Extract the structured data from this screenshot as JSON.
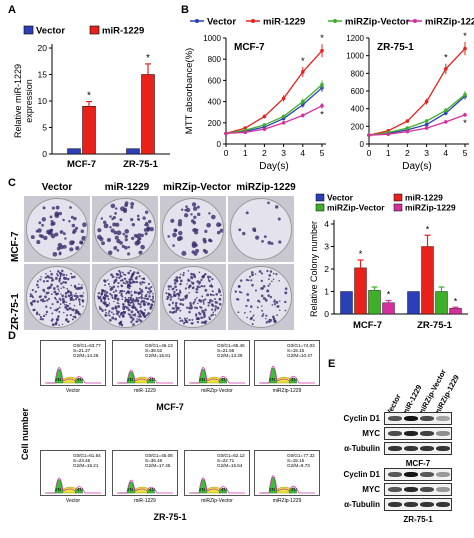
{
  "panels": {
    "A": "A",
    "B": "B",
    "C": "C",
    "D": "D",
    "E": "E"
  },
  "chart_data": [
    {
      "type": "bar",
      "panel": "A",
      "categories": [
        "MCF-7",
        "ZR-75-1"
      ],
      "series": [
        {
          "name": "Vector",
          "values": [
            1,
            1
          ],
          "color": "#2b3fb8"
        },
        {
          "name": "miR-1229",
          "values": [
            9,
            15
          ],
          "errors": [
            0.9,
            2.0
          ],
          "color": "#e8211a"
        }
      ],
      "ylabel": "Relative miR-1229\nexpression",
      "ylim": [
        0,
        20
      ],
      "yticks": [
        0,
        5,
        10,
        15,
        20
      ],
      "annotations": [
        "*",
        "*"
      ],
      "legend": "top"
    },
    {
      "type": "line",
      "panel": "B",
      "title": "MCF-7",
      "x": [
        0,
        1,
        2,
        3,
        4,
        5
      ],
      "xlabel": "Day(s)",
      "ylabel": "MTT absorbance(%)",
      "ylim": [
        0,
        1000
      ],
      "yticks": [
        0,
        200,
        400,
        600,
        800,
        1000
      ],
      "series": [
        {
          "name": "Vector",
          "values": [
            100,
            120,
            160,
            240,
            370,
            530
          ],
          "color": "#2b3fb8"
        },
        {
          "name": "miR-1229",
          "values": [
            100,
            150,
            260,
            430,
            680,
            880
          ],
          "color": "#e8211a"
        },
        {
          "name": "miRZip-Vector",
          "values": [
            100,
            130,
            180,
            260,
            400,
            560
          ],
          "color": "#3faf2a"
        },
        {
          "name": "miRZip-1229",
          "values": [
            100,
            110,
            140,
            200,
            270,
            360
          ],
          "color": "#d4309c"
        }
      ],
      "annotations": [
        "*",
        "*",
        "*"
      ]
    },
    {
      "type": "line",
      "panel": "B",
      "title": "ZR-75-1",
      "x": [
        0,
        1,
        2,
        3,
        4,
        5
      ],
      "xlabel": "Day(s)",
      "ylim": [
        0,
        1200
      ],
      "yticks": [
        0,
        200,
        400,
        600,
        800,
        1000,
        1200
      ],
      "series": [
        {
          "name": "Vector",
          "values": [
            100,
            120,
            160,
            220,
            350,
            540
          ],
          "color": "#2b3fb8"
        },
        {
          "name": "miR-1229",
          "values": [
            100,
            150,
            260,
            480,
            850,
            1080
          ],
          "color": "#e8211a"
        },
        {
          "name": "miRZip-Vector",
          "values": [
            100,
            130,
            180,
            260,
            380,
            560
          ],
          "color": "#3faf2a"
        },
        {
          "name": "miRZip-1229",
          "values": [
            100,
            110,
            140,
            180,
            250,
            330
          ],
          "color": "#d4309c"
        }
      ],
      "annotations": [
        "*",
        "*",
        "*"
      ]
    },
    {
      "type": "bar",
      "panel": "C",
      "categories": [
        "MCF-7",
        "ZR-75-1"
      ],
      "series": [
        {
          "name": "Vector",
          "values": [
            1,
            1
          ],
          "color": "#2b3fb8"
        },
        {
          "name": "miR-1229",
          "values": [
            2.05,
            3.0
          ],
          "errors": [
            0.35,
            0.5
          ],
          "color": "#e8211a"
        },
        {
          "name": "miRZip-Vector",
          "values": [
            1.05,
            1.0
          ],
          "errors": [
            0.15,
            0.2
          ],
          "color": "#3faf2a"
        },
        {
          "name": "miRZip-1229",
          "values": [
            0.5,
            0.25
          ],
          "errors": [
            0.1,
            0.05
          ],
          "color": "#d4309c"
        }
      ],
      "ylabel": "Relative Colony number",
      "ylim": [
        0,
        4
      ],
      "yticks": [
        0,
        1,
        2,
        3,
        4
      ],
      "annotations": [
        "*",
        "*",
        "*",
        "*"
      ],
      "legend": "top"
    }
  ],
  "colony": {
    "columns": [
      "Vector",
      "miR-1229",
      "miRZip-Vector",
      "miRZip-1229"
    ],
    "rows": [
      "MCF-7",
      "ZR-75-1"
    ]
  },
  "flow": {
    "ylabel": "Cell number",
    "peak_labels": [
      "2N",
      "4N"
    ],
    "groups": [
      {
        "cell": "MCF-7",
        "items": [
          {
            "name": "Vector",
            "stats": [
              "G0/G1=63.77",
              "S=21.27",
              "G2/M=14.28"
            ]
          },
          {
            "name": "miR-1229",
            "stats": [
              "G0/G1=46.13",
              "S=38.52",
              "G2/M=15.81"
            ]
          },
          {
            "name": "miRZip-Vector",
            "stats": [
              "G0/G1=65.46",
              "S=21.55",
              "G2/M=13.39"
            ]
          },
          {
            "name": "miRZip-1229",
            "stats": [
              "G0/G1=74.03",
              "S=15.15",
              "G2/M=10.47"
            ]
          }
        ]
      },
      {
        "cell": "ZR-75-1",
        "items": [
          {
            "name": "Vector",
            "stats": [
              "G0/G1=61.64",
              "S=23.45",
              "G2/M=15.21"
            ]
          },
          {
            "name": "miR-1229",
            "stats": [
              "G0/G1=45.08",
              "S=36.46",
              "G2/M=17.45"
            ]
          },
          {
            "name": "miRZip-Vector",
            "stats": [
              "G0/G1=62.12",
              "S=22.71",
              "G2/M=15.54"
            ]
          },
          {
            "name": "miRZip-1229",
            "stats": [
              "G0/G1=77.32",
              "S=15.15",
              "G2/M=9.73"
            ]
          }
        ]
      }
    ]
  },
  "western": {
    "lanes": [
      "Vector",
      "miR-1229",
      "miRZip-Vector",
      "miRZip-1229"
    ],
    "blots": [
      {
        "cell": "MCF-7",
        "proteins": [
          "Cyclin D1",
          "MYC",
          "α-Tubulin"
        ]
      },
      {
        "cell": "ZR-75-1",
        "proteins": [
          "Cyclin D1",
          "MYC",
          "α-Tubulin"
        ]
      }
    ]
  }
}
